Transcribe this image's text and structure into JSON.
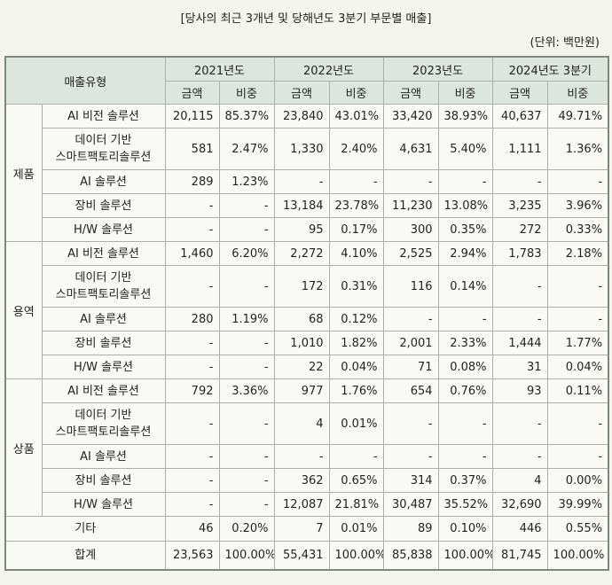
{
  "title": "[당사의 최근 3개년 및 당해년도 3분기 부문별 매출]",
  "unit": "(단위: 백만원)",
  "header": {
    "type_label": "매출유형",
    "years": [
      "2021년도",
      "2022년도",
      "2023년도",
      "2024년도 3분기"
    ],
    "amount_label": "금액",
    "ratio_label": "비중"
  },
  "groups": [
    {
      "name": "제품",
      "rows": [
        {
          "label": [
            "AI 비전 솔루션"
          ],
          "values": [
            "20,115",
            "85.37%",
            "23,840",
            "43.01%",
            "33,420",
            "38.93%",
            "40,637",
            "49.71%"
          ]
        },
        {
          "label": [
            "데이터 기반",
            "스마트팩토리솔루션"
          ],
          "values": [
            "581",
            "2.47%",
            "1,330",
            "2.40%",
            "4,631",
            "5.40%",
            "1,111",
            "1.36%"
          ]
        },
        {
          "label": [
            "AI 솔루션"
          ],
          "values": [
            "289",
            "1.23%",
            "-",
            "-",
            "-",
            "-",
            "-",
            "-"
          ]
        },
        {
          "label": [
            "장비 솔루션"
          ],
          "values": [
            "-",
            "-",
            "13,184",
            "23.78%",
            "11,230",
            "13.08%",
            "3,235",
            "3.96%"
          ]
        },
        {
          "label": [
            "H/W 솔루션"
          ],
          "values": [
            "-",
            "-",
            "95",
            "0.17%",
            "300",
            "0.35%",
            "272",
            "0.33%"
          ]
        }
      ]
    },
    {
      "name": "용역",
      "rows": [
        {
          "label": [
            "AI 비전 솔루션"
          ],
          "values": [
            "1,460",
            "6.20%",
            "2,272",
            "4.10%",
            "2,525",
            "2.94%",
            "1,783",
            "2.18%"
          ]
        },
        {
          "label": [
            "데이터 기반",
            "스마트팩토리솔루션"
          ],
          "values": [
            "-",
            "-",
            "172",
            "0.31%",
            "116",
            "0.14%",
            "-",
            "-"
          ]
        },
        {
          "label": [
            "AI 솔루션"
          ],
          "values": [
            "280",
            "1.19%",
            "68",
            "0.12%",
            "-",
            "-",
            "-",
            "-"
          ]
        },
        {
          "label": [
            "장비 솔루션"
          ],
          "values": [
            "-",
            "-",
            "1,010",
            "1.82%",
            "2,001",
            "2.33%",
            "1,444",
            "1.77%"
          ]
        },
        {
          "label": [
            "H/W 솔루션"
          ],
          "values": [
            "-",
            "-",
            "22",
            "0.04%",
            "71",
            "0.08%",
            "31",
            "0.04%"
          ]
        }
      ]
    },
    {
      "name": "상품",
      "rows": [
        {
          "label": [
            "AI 비전 솔루션"
          ],
          "values": [
            "792",
            "3.36%",
            "977",
            "1.76%",
            "654",
            "0.76%",
            "93",
            "0.11%"
          ]
        },
        {
          "label": [
            "데이터 기반",
            "스마트팩토리솔루션"
          ],
          "values": [
            "-",
            "-",
            "4",
            "0.01%",
            "-",
            "-",
            "-",
            "-"
          ]
        },
        {
          "label": [
            "AI 솔루션"
          ],
          "values": [
            "-",
            "-",
            "-",
            "-",
            "-",
            "-",
            "-",
            "-"
          ]
        },
        {
          "label": [
            "장비 솔루션"
          ],
          "values": [
            "-",
            "-",
            "362",
            "0.65%",
            "314",
            "0.37%",
            "4",
            "0.00%"
          ]
        },
        {
          "label": [
            "H/W 솔루션"
          ],
          "values": [
            "-",
            "-",
            "12,087",
            "21.81%",
            "30,487",
            "35.52%",
            "32,690",
            "39.99%"
          ]
        }
      ]
    }
  ],
  "etc": {
    "label": "기타",
    "values": [
      "46",
      "0.20%",
      "7",
      "0.01%",
      "89",
      "0.10%",
      "446",
      "0.55%"
    ]
  },
  "total": {
    "label": "합계",
    "values": [
      "23,563",
      "100.00%",
      "55,431",
      "100.00%",
      "85,838",
      "100.00%",
      "81,745",
      "100.00%"
    ]
  }
}
